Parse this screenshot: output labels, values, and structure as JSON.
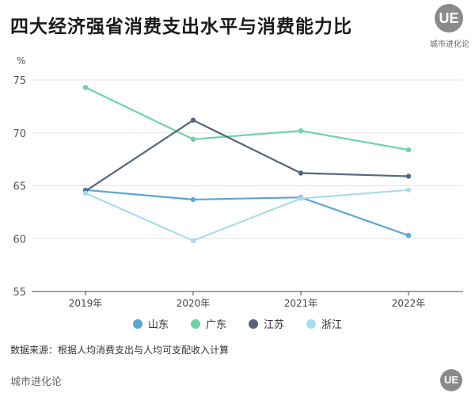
{
  "header": {
    "title": "四大经济强省消费支出水平与消费能力比",
    "brand_logo": "UE",
    "brand_name": "城市进化论"
  },
  "footer": {
    "source": "数据来源：根据人均消费支出与人均可支配收入计算",
    "brand_name": "城市进化论",
    "brand_logo": "UE"
  },
  "chart_data": {
    "type": "line",
    "title": "四大经济强省消费支出水平与消费能力比",
    "xlabel": "",
    "ylabel": "%",
    "categories": [
      "2019年",
      "2020年",
      "2021年",
      "2022年"
    ],
    "ylim": [
      55,
      76
    ],
    "yticks": [
      55,
      60,
      65,
      70,
      75
    ],
    "grid": true,
    "legend_position": "bottom",
    "series": [
      {
        "name": "山东",
        "color": "#5aa6d6",
        "values": [
          64.6,
          63.7,
          63.9,
          60.3
        ]
      },
      {
        "name": "广东",
        "color": "#6fd3a8",
        "values": [
          74.3,
          69.4,
          70.2,
          68.4
        ]
      },
      {
        "name": "江苏",
        "color": "#56657f",
        "values": [
          64.5,
          71.2,
          66.2,
          65.9
        ]
      },
      {
        "name": "浙江",
        "color": "#a9dcef",
        "values": [
          64.3,
          59.8,
          63.8,
          64.6
        ]
      }
    ]
  }
}
